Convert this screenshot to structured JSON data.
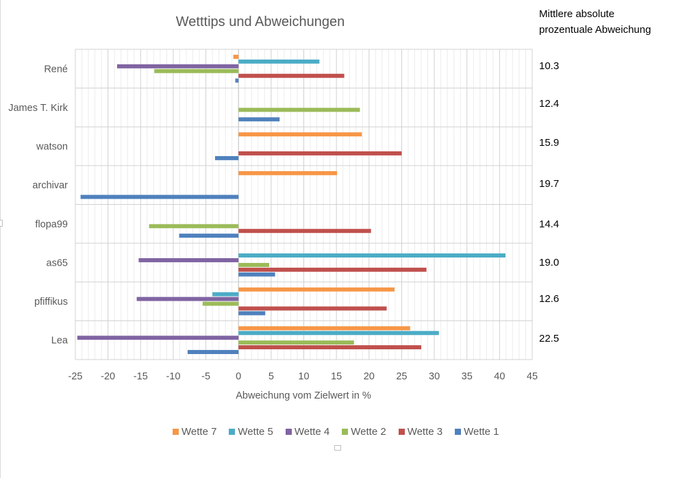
{
  "side_panel": {
    "header_line1": "Mittlere absolute",
    "header_line2": "prozentuale Abweichung",
    "values": [
      "10.3",
      "12.4",
      "15.9",
      "19.7",
      "14.4",
      "19.0",
      "12.6",
      "22.5"
    ]
  },
  "chart_data": {
    "type": "bar",
    "orientation": "horizontal",
    "title": "Wetttips und Abweichungen",
    "xlabel": "Abweichung vom Zielwert in %",
    "ylabel": "",
    "xlim": [
      -25,
      45
    ],
    "x_ticks": [
      "-25",
      "-20",
      "-15",
      "-10",
      "-5",
      "0",
      "5",
      "10",
      "15",
      "20",
      "25",
      "30",
      "35",
      "40",
      "45"
    ],
    "grid": true,
    "legend_position": "bottom",
    "categories": [
      "René",
      "James T. Kirk",
      "watson",
      "archivar",
      "flopa99",
      "as65",
      "pfiffikus",
      "Lea"
    ],
    "series": [
      {
        "name": "Wette 7",
        "color": "#f79646",
        "values": [
          -0.8,
          null,
          18.9,
          15.1,
          null,
          null,
          23.9,
          26.3
        ]
      },
      {
        "name": "Wette 5",
        "color": "#4bacc6",
        "values": [
          12.4,
          null,
          null,
          null,
          null,
          40.9,
          -4.0,
          30.7
        ]
      },
      {
        "name": "Wette 4",
        "color": "#8064a2",
        "values": [
          -18.6,
          null,
          null,
          null,
          null,
          -15.3,
          -15.6,
          -24.7
        ]
      },
      {
        "name": "Wette 2",
        "color": "#9bbb59",
        "values": [
          -12.9,
          18.6,
          null,
          null,
          -13.7,
          4.7,
          -5.5,
          17.7
        ]
      },
      {
        "name": "Wette 3",
        "color": "#c0504d",
        "values": [
          16.2,
          null,
          25.0,
          null,
          20.3,
          28.8,
          22.7,
          28.0
        ]
      },
      {
        "name": "Wette 1",
        "color": "#4f81bd",
        "values": [
          -0.5,
          6.3,
          -3.6,
          -24.2,
          -9.1,
          5.6,
          4.1,
          -7.8
        ]
      }
    ]
  }
}
